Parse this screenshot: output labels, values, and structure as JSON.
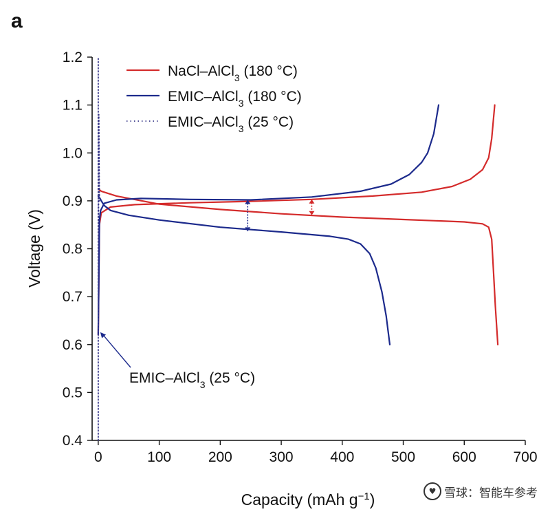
{
  "chart_data": {
    "type": "line",
    "panel_label": "a",
    "xlabel": "Capacity (mAh g−1)",
    "xlabel_main": "Capacity (mAh g",
    "xlabel_sup": "−1",
    "xlabel_end": ")",
    "ylabel": "Voltage (V)",
    "xlim": [
      -10,
      700
    ],
    "ylim": [
      0.4,
      1.2
    ],
    "xticks": [
      0,
      100,
      200,
      300,
      400,
      500,
      600,
      700
    ],
    "yticks": [
      0.4,
      0.5,
      0.6,
      0.7,
      0.8,
      0.9,
      1.0,
      1.1,
      1.2
    ],
    "ytick_labels": [
      "0.4",
      "0.5",
      "0.6",
      "0.7",
      "0.8",
      "0.9",
      "1.0",
      "1.1",
      "1.2"
    ],
    "grid": false,
    "legend_position": "top-left",
    "series": [
      {
        "name": "NaCl–AlCl3 (180 °C)",
        "legend_main": "NaCl–AlCl",
        "legend_sub": "3",
        "legend_end": " (180 °C)",
        "color": "#d42b2b",
        "style": "solid",
        "curves": [
          {
            "phase": "charge",
            "points": [
              [
                0,
                0.62
              ],
              [
                2,
                0.85
              ],
              [
                5,
                0.875
              ],
              [
                20,
                0.887
              ],
              [
                60,
                0.892
              ],
              [
                150,
                0.896
              ],
              [
                250,
                0.899
              ],
              [
                350,
                0.903
              ],
              [
                450,
                0.91
              ],
              [
                530,
                0.918
              ],
              [
                580,
                0.93
              ],
              [
                610,
                0.945
              ],
              [
                630,
                0.965
              ],
              [
                640,
                0.99
              ],
              [
                645,
                1.03
              ],
              [
                650,
                1.1
              ]
            ]
          },
          {
            "phase": "discharge",
            "points": [
              [
                0,
                0.925
              ],
              [
                5,
                0.92
              ],
              [
                30,
                0.91
              ],
              [
                100,
                0.893
              ],
              [
                200,
                0.882
              ],
              [
                300,
                0.873
              ],
              [
                400,
                0.866
              ],
              [
                500,
                0.861
              ],
              [
                600,
                0.856
              ],
              [
                630,
                0.852
              ],
              [
                640,
                0.845
              ],
              [
                645,
                0.82
              ],
              [
                648,
                0.75
              ],
              [
                651,
                0.68
              ],
              [
                655,
                0.6
              ]
            ]
          }
        ]
      },
      {
        "name": "EMIC–AlCl3 (180 °C)",
        "legend_main": "EMIC–AlCl",
        "legend_sub": "3",
        "legend_end": " (180 °C)",
        "color": "#1c2a8c",
        "style": "solid",
        "curves": [
          {
            "phase": "charge",
            "points": [
              [
                0,
                0.62
              ],
              [
                2,
                0.86
              ],
              [
                4,
                0.88
              ],
              [
                10,
                0.895
              ],
              [
                30,
                0.902
              ],
              [
                70,
                0.905
              ],
              [
                150,
                0.903
              ],
              [
                250,
                0.902
              ],
              [
                350,
                0.908
              ],
              [
                430,
                0.92
              ],
              [
                480,
                0.935
              ],
              [
                510,
                0.955
              ],
              [
                530,
                0.98
              ],
              [
                540,
                1.0
              ],
              [
                550,
                1.04
              ],
              [
                558,
                1.1
              ]
            ]
          },
          {
            "phase": "discharge",
            "points": [
              [
                0,
                0.91
              ],
              [
                3,
                0.905
              ],
              [
                5,
                0.9
              ],
              [
                10,
                0.89
              ],
              [
                20,
                0.88
              ],
              [
                50,
                0.87
              ],
              [
                100,
                0.86
              ],
              [
                200,
                0.845
              ],
              [
                300,
                0.835
              ],
              [
                380,
                0.826
              ],
              [
                410,
                0.82
              ],
              [
                430,
                0.81
              ],
              [
                445,
                0.79
              ],
              [
                455,
                0.76
              ],
              [
                465,
                0.71
              ],
              [
                472,
                0.66
              ],
              [
                478,
                0.6
              ]
            ]
          }
        ]
      },
      {
        "name": "EMIC–AlCl3 (25 °C)",
        "legend_main": "EMIC–AlCl",
        "legend_sub": "3",
        "legend_end": " (25 °C)",
        "color": "#3a3a8a",
        "style": "dotted",
        "curves": [
          {
            "phase": "vertical",
            "points": [
              [
                0,
                0.4
              ],
              [
                0,
                1.2
              ]
            ]
          },
          {
            "phase": "spike",
            "points": [
              [
                0,
                0.62
              ],
              [
                1,
                1.08
              ],
              [
                2,
                0.9
              ]
            ]
          }
        ]
      }
    ],
    "annotation": {
      "main": "EMIC–AlCl",
      "sub": "3",
      "end": " (25 °C)",
      "points_to": [
        0,
        0.62
      ]
    },
    "overpotential_markers": [
      {
        "x": 245,
        "y_low": 0.836,
        "y_high": 0.902,
        "color": "#1c2a8c",
        "style": "dotted"
      },
      {
        "x": 350,
        "y_low": 0.87,
        "y_high": 0.903,
        "color": "#d42b2b",
        "style": "dotted"
      }
    ]
  },
  "watermark": {
    "logo": "♥",
    "text": "雪球：智能车参考"
  }
}
